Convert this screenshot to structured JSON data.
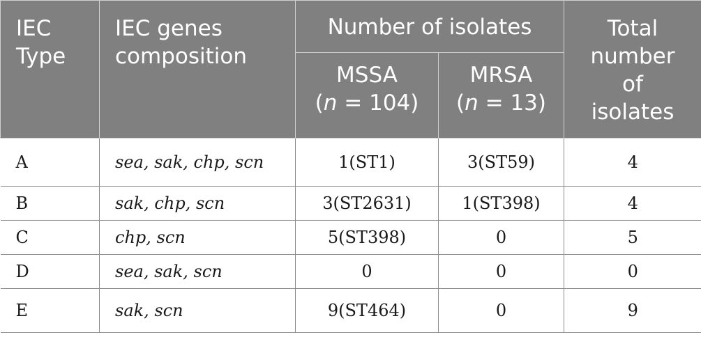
{
  "headers": {
    "iec_type": [
      "IEC",
      "Type"
    ],
    "genes": [
      "IEC genes",
      "composition"
    ],
    "number_of_isolates": "Number of isolates",
    "mssa": {
      "name": "MSSA",
      "n_label": "n",
      "n_value": "= 104)"
    },
    "mrsa": {
      "name": "MRSA",
      "n_label": "n",
      "n_value": "= 13)"
    },
    "total": [
      "Total",
      "number",
      "of",
      "isolates"
    ]
  },
  "rows": [
    {
      "type": "A",
      "genes": "sea, sak, chp, scn",
      "mssa": "1(ST1)",
      "mrsa": "3(ST59)",
      "total": "4"
    },
    {
      "type": "B",
      "genes": "sak, chp, scn",
      "mssa": "3(ST2631)",
      "mrsa": "1(ST398)",
      "total": "4"
    },
    {
      "type": "C",
      "genes": "chp, scn",
      "mssa": "5(ST398)",
      "mrsa": "0",
      "total": "5"
    },
    {
      "type": "D",
      "genes": "sea, sak, scn",
      "mssa": "0",
      "mrsa": "0",
      "total": "0"
    },
    {
      "type": "E",
      "genes": "sak, scn",
      "mssa": "9(ST464)",
      "mrsa": "0",
      "total": "9"
    }
  ]
}
